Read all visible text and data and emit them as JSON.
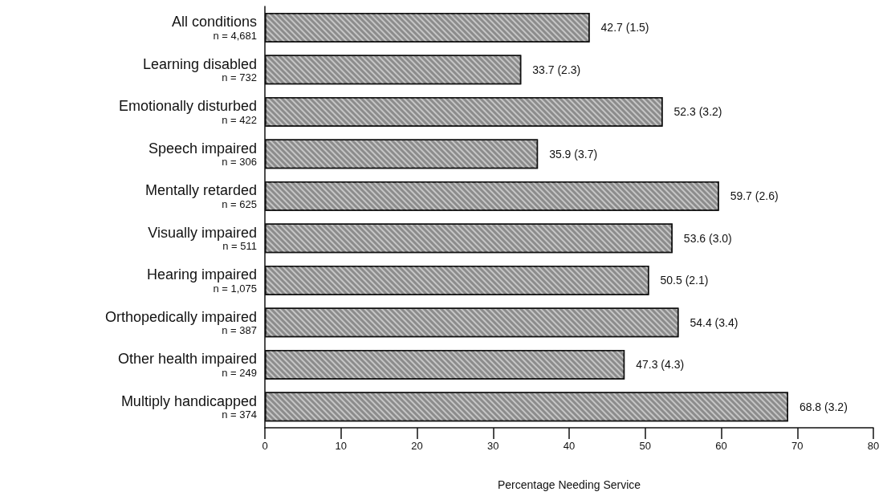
{
  "chart_data": {
    "type": "bar",
    "orientation": "horizontal",
    "xlabel": "Percentage Needing Service",
    "categories": [
      "All conditions\nn = 4,681",
      "Learning disabled\nn = 732",
      "Emotionally disturbed\nn = 422",
      "Speech impaired\nn = 306",
      "Mentally retarded\nn = 625",
      "Visually impaired\nn = 511",
      "Hearing impaired\nn = 1,075",
      "Orthopedically impaired\nn = 387",
      "Other health impaired\nn = 249",
      "Multiply handicapped\nn = 374"
    ],
    "values": [
      42.7,
      33.7,
      52.3,
      35.9,
      59.7,
      53.6,
      50.5,
      54.4,
      47.3,
      68.8
    ],
    "value_labels": [
      "42.7 (1.5)",
      "33.7 (2.3)",
      "52.3 (3.2)",
      "35.9 (3.7)",
      "59.7 (2.6)",
      "53.6 (3.0)",
      "50.5 (2.1)",
      "54.4 (3.4)",
      "47.3 (4.3)",
      "68.8 (3.2)"
    ],
    "color": "#8c8c8c",
    "xlim": [
      0,
      80
    ],
    "xticks": [
      0,
      10,
      20,
      30,
      40,
      50,
      60,
      70,
      80
    ],
    "grid": false
  }
}
